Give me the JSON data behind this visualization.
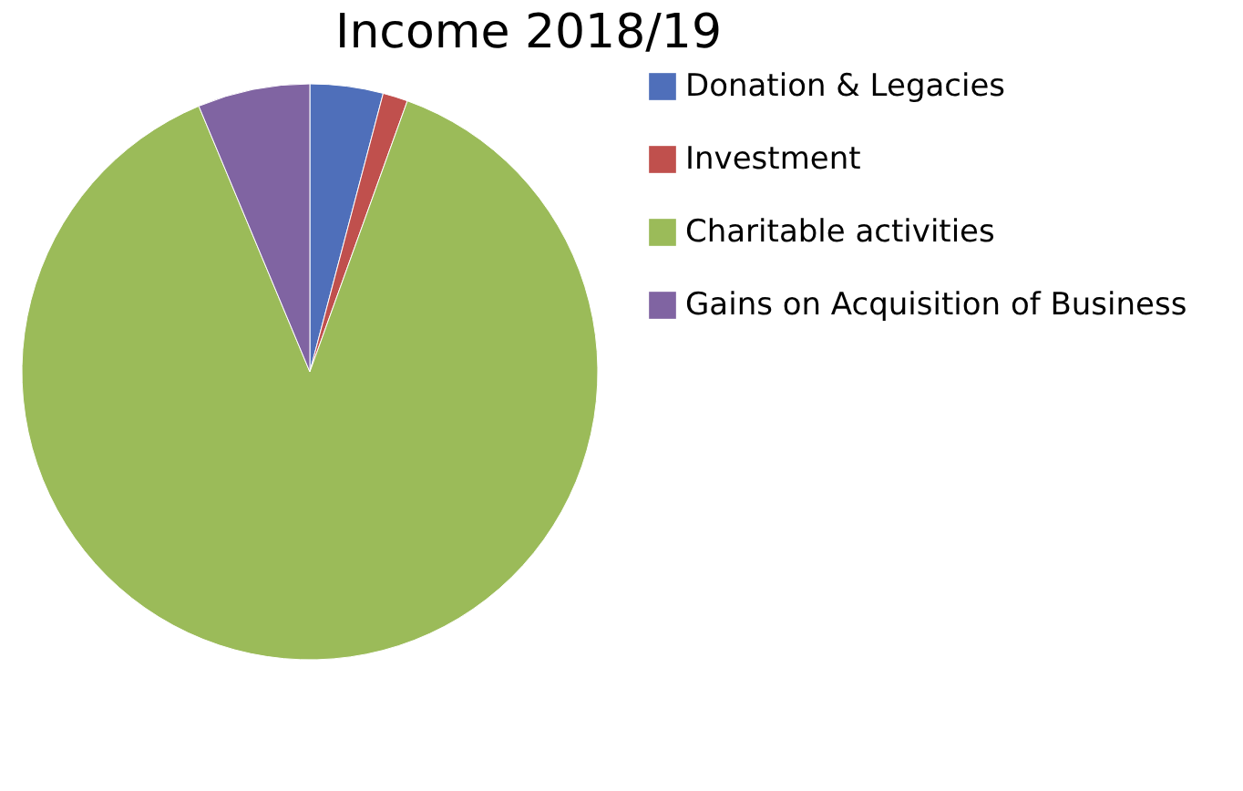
{
  "chart_data": {
    "type": "pie",
    "title": "Income 2018/19",
    "categories": [
      "Donation & Legacies",
      "Investment",
      "Charitable activities",
      "Gains on Acquisition of Business"
    ],
    "values": [
      4.1,
      1.4,
      88.2,
      6.3
    ],
    "colors": [
      "#4f6fba",
      "#c0504d",
      "#9bbb59",
      "#8064a2"
    ],
    "legend": "right"
  }
}
